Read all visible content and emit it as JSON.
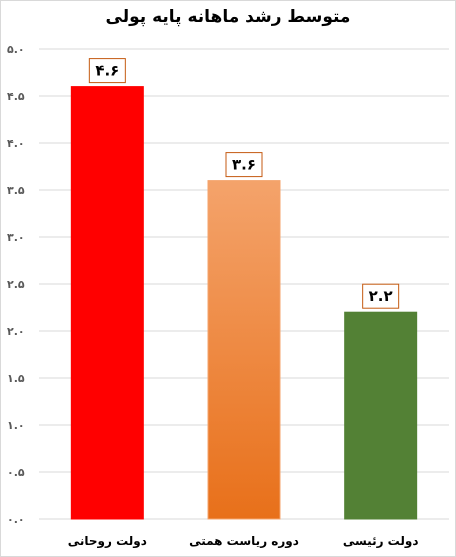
{
  "chart_data": {
    "type": "bar",
    "title": "متوسط رشد ماهانه پایه پولی",
    "categories": [
      "دولت روحانی",
      "دوره ریاست همتی",
      "دولت رئیسی"
    ],
    "values": [
      4.6,
      3.6,
      2.2
    ],
    "data_labels": [
      "۴.۶",
      "۳.۶",
      "۲.۲"
    ],
    "colors": [
      "#ff0000",
      "gradient:#f4a36b-#e8701a",
      "#538135"
    ],
    "ylim": [
      0,
      5
    ],
    "yticks": [
      0,
      0.5,
      1,
      1.5,
      2,
      2.5,
      3,
      3.5,
      4,
      4.5,
      5
    ],
    "ytick_labels": [
      "۰.۰",
      "۰.۵",
      "۱.۰",
      "۱.۵",
      "۲.۰",
      "۲.۵",
      "۳.۰",
      "۳.۵",
      "۴.۰",
      "۴.۵",
      "۵.۰"
    ],
    "grid": true,
    "legend": "none",
    "xlabel": "",
    "ylabel": ""
  }
}
